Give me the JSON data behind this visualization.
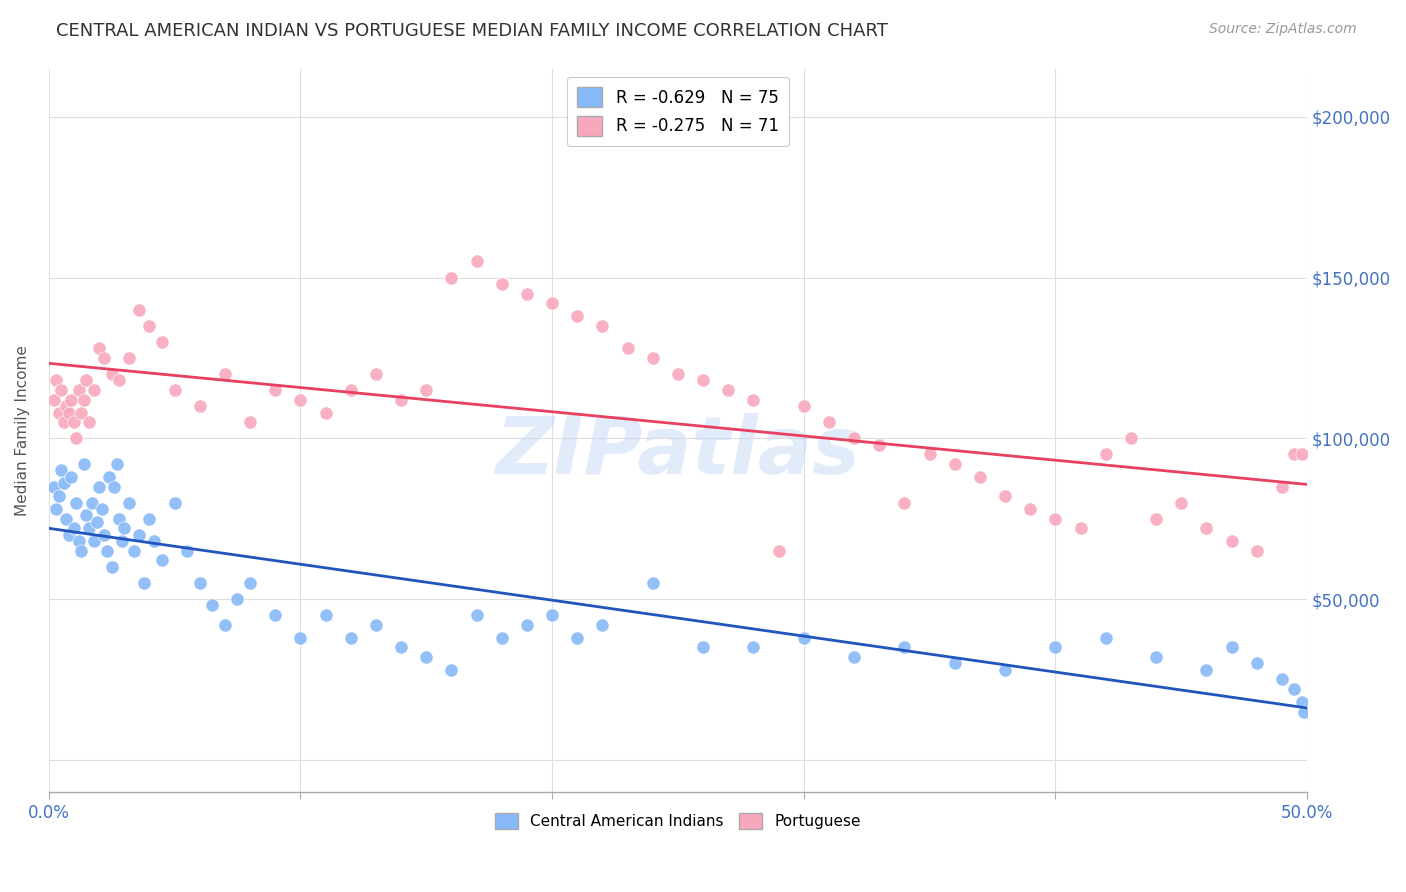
{
  "title": "CENTRAL AMERICAN INDIAN VS PORTUGUESE MEDIAN FAMILY INCOME CORRELATION CHART",
  "source": "Source: ZipAtlas.com",
  "ylabel": "Median Family Income",
  "xlim": [
    0.0,
    0.5
  ],
  "ylim": [
    -10000,
    215000
  ],
  "yticks": [
    0,
    50000,
    100000,
    150000,
    200000
  ],
  "ytick_labels": [
    "",
    "$50,000",
    "$100,000",
    "$150,000",
    "$200,000"
  ],
  "xticks": [
    0.0,
    0.1,
    0.2,
    0.3,
    0.4,
    0.5
  ],
  "xtick_labels": [
    "0.0%",
    "",
    "",
    "",
    "",
    "50.0%"
  ],
  "background_color": "#ffffff",
  "grid_color": "#dedede",
  "blue_color": "#87b8f8",
  "pink_color": "#f8a8bc",
  "blue_line_color": "#2255bb",
  "pink_line_color": "#e84060",
  "legend_r_blue": "R = -0.629",
  "legend_n_blue": "N = 75",
  "legend_r_pink": "R = -0.275",
  "legend_n_pink": "N = 71",
  "watermark": "ZIPatlas",
  "blue_scatter_x": [
    0.002,
    0.003,
    0.004,
    0.005,
    0.006,
    0.007,
    0.008,
    0.009,
    0.01,
    0.011,
    0.012,
    0.013,
    0.014,
    0.015,
    0.016,
    0.017,
    0.018,
    0.019,
    0.02,
    0.021,
    0.022,
    0.023,
    0.024,
    0.025,
    0.026,
    0.027,
    0.028,
    0.029,
    0.03,
    0.032,
    0.034,
    0.036,
    0.038,
    0.04,
    0.042,
    0.045,
    0.05,
    0.055,
    0.06,
    0.065,
    0.07,
    0.075,
    0.08,
    0.09,
    0.1,
    0.11,
    0.12,
    0.13,
    0.14,
    0.15,
    0.16,
    0.17,
    0.18,
    0.19,
    0.2,
    0.21,
    0.22,
    0.24,
    0.26,
    0.28,
    0.3,
    0.32,
    0.34,
    0.36,
    0.38,
    0.4,
    0.42,
    0.44,
    0.46,
    0.47,
    0.48,
    0.49,
    0.495,
    0.498,
    0.499
  ],
  "blue_scatter_y": [
    85000,
    78000,
    82000,
    90000,
    86000,
    75000,
    70000,
    88000,
    72000,
    80000,
    68000,
    65000,
    92000,
    76000,
    72000,
    80000,
    68000,
    74000,
    85000,
    78000,
    70000,
    65000,
    88000,
    60000,
    85000,
    92000,
    75000,
    68000,
    72000,
    80000,
    65000,
    70000,
    55000,
    75000,
    68000,
    62000,
    80000,
    65000,
    55000,
    48000,
    42000,
    50000,
    55000,
    45000,
    38000,
    45000,
    38000,
    42000,
    35000,
    32000,
    28000,
    45000,
    38000,
    42000,
    45000,
    38000,
    42000,
    55000,
    35000,
    35000,
    38000,
    32000,
    35000,
    30000,
    28000,
    35000,
    38000,
    32000,
    28000,
    35000,
    30000,
    25000,
    22000,
    18000,
    15000
  ],
  "pink_scatter_x": [
    0.002,
    0.003,
    0.004,
    0.005,
    0.006,
    0.007,
    0.008,
    0.009,
    0.01,
    0.011,
    0.012,
    0.013,
    0.014,
    0.015,
    0.016,
    0.018,
    0.02,
    0.022,
    0.025,
    0.028,
    0.032,
    0.036,
    0.04,
    0.045,
    0.05,
    0.06,
    0.07,
    0.08,
    0.09,
    0.1,
    0.11,
    0.12,
    0.13,
    0.14,
    0.15,
    0.16,
    0.17,
    0.18,
    0.19,
    0.2,
    0.21,
    0.22,
    0.23,
    0.24,
    0.25,
    0.26,
    0.27,
    0.28,
    0.29,
    0.3,
    0.31,
    0.32,
    0.33,
    0.34,
    0.35,
    0.36,
    0.37,
    0.38,
    0.39,
    0.4,
    0.41,
    0.42,
    0.43,
    0.44,
    0.45,
    0.46,
    0.47,
    0.48,
    0.49,
    0.495,
    0.498
  ],
  "pink_scatter_y": [
    112000,
    118000,
    108000,
    115000,
    105000,
    110000,
    108000,
    112000,
    105000,
    100000,
    115000,
    108000,
    112000,
    118000,
    105000,
    115000,
    128000,
    125000,
    120000,
    118000,
    125000,
    140000,
    135000,
    130000,
    115000,
    110000,
    120000,
    105000,
    115000,
    112000,
    108000,
    115000,
    120000,
    112000,
    115000,
    150000,
    155000,
    148000,
    145000,
    142000,
    138000,
    135000,
    128000,
    125000,
    120000,
    118000,
    115000,
    112000,
    65000,
    110000,
    105000,
    100000,
    98000,
    80000,
    95000,
    92000,
    88000,
    82000,
    78000,
    75000,
    72000,
    95000,
    100000,
    75000,
    80000,
    72000,
    68000,
    65000,
    85000,
    95000,
    95000
  ]
}
